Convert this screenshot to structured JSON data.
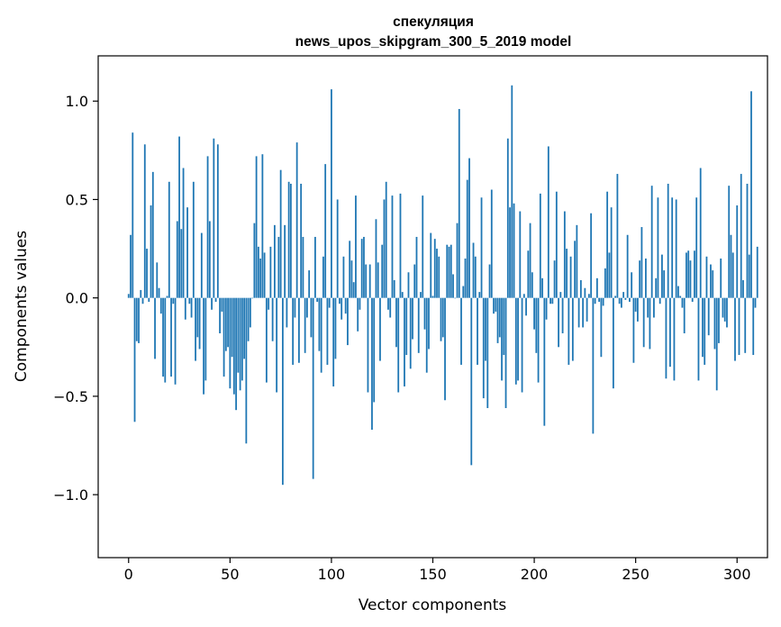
{
  "chart_data": {
    "type": "bar",
    "title": "спекуляция",
    "subtitle": "news_upos_skipgram_300_5_2019 model",
    "xlabel": "Vector components",
    "ylabel": "Components values",
    "xlim": [
      -15,
      315
    ],
    "ylim": [
      -1.32,
      1.23
    ],
    "xticks": [
      0,
      50,
      100,
      150,
      200,
      250,
      300
    ],
    "yticks": [
      -1.0,
      -0.5,
      0.0,
      0.5,
      1.0
    ],
    "ytick_labels": [
      "−1.0",
      "−0.5",
      "0.0",
      "0.5",
      "1.0"
    ],
    "bar_color": "#1f77b4",
    "grid": false,
    "values": [
      0.02,
      0.32,
      0.84,
      -0.63,
      -0.22,
      -0.23,
      0.04,
      -0.03,
      0.78,
      0.25,
      -0.02,
      0.47,
      0.64,
      -0.31,
      0.18,
      0.05,
      -0.08,
      -0.4,
      -0.43,
      0.01,
      0.59,
      -0.4,
      -0.03,
      -0.44,
      0.39,
      0.82,
      0.35,
      0.66,
      -0.11,
      0.46,
      -0.03,
      -0.1,
      0.59,
      -0.32,
      -0.2,
      -0.26,
      0.33,
      -0.49,
      -0.42,
      0.72,
      0.39,
      -0.06,
      0.81,
      -0.02,
      0.78,
      -0.18,
      -0.07,
      -0.4,
      -0.27,
      -0.25,
      -0.46,
      -0.3,
      -0.49,
      -0.57,
      -0.38,
      -0.47,
      -0.42,
      -0.31,
      -0.74,
      -0.22,
      -0.15,
      0.0,
      0.38,
      0.72,
      0.26,
      0.2,
      0.73,
      0.23,
      -0.43,
      -0.06,
      0.26,
      -0.22,
      0.37,
      -0.48,
      0.31,
      0.65,
      -0.95,
      0.37,
      -0.15,
      0.59,
      0.58,
      -0.34,
      -0.1,
      0.79,
      -0.33,
      0.58,
      0.31,
      -0.28,
      -0.1,
      0.14,
      -0.2,
      -0.92,
      0.31,
      -0.02,
      -0.27,
      -0.38,
      0.21,
      0.68,
      -0.34,
      -0.05,
      1.06,
      -0.45,
      -0.31,
      0.5,
      -0.03,
      -0.11,
      0.21,
      -0.08,
      -0.24,
      0.29,
      0.19,
      0.08,
      0.52,
      -0.17,
      -0.06,
      0.3,
      0.31,
      0.17,
      -0.48,
      0.17,
      -0.67,
      -0.53,
      0.4,
      0.18,
      -0.32,
      0.27,
      0.5,
      0.59,
      -0.06,
      -0.1,
      0.52,
      0.09,
      -0.25,
      -0.48,
      0.53,
      0.03,
      -0.45,
      -0.29,
      0.13,
      -0.36,
      -0.21,
      0.17,
      0.31,
      -0.28,
      0.03,
      0.52,
      -0.16,
      -0.38,
      -0.26,
      0.33,
      0.01,
      0.3,
      0.25,
      0.21,
      -0.22,
      -0.2,
      -0.52,
      0.27,
      0.26,
      0.27,
      0.12,
      0.0,
      0.38,
      0.96,
      -0.34,
      0.06,
      0.2,
      0.6,
      0.71,
      -0.85,
      0.28,
      0.21,
      -0.34,
      0.03,
      0.51,
      -0.51,
      -0.32,
      -0.56,
      0.17,
      0.55,
      -0.08,
      -0.07,
      -0.23,
      -0.2,
      -0.42,
      -0.29,
      -0.56,
      0.81,
      0.46,
      1.08,
      0.48,
      -0.44,
      -0.42,
      0.44,
      -0.48,
      0.02,
      -0.09,
      0.24,
      0.38,
      0.13,
      -0.16,
      -0.28,
      -0.43,
      0.53,
      0.1,
      -0.65,
      -0.11,
      0.77,
      -0.03,
      -0.03,
      0.19,
      0.54,
      -0.25,
      0.03,
      -0.18,
      0.44,
      0.25,
      -0.34,
      0.21,
      -0.32,
      0.29,
      0.37,
      -0.15,
      0.09,
      -0.15,
      0.05,
      -0.12,
      0.02,
      0.43,
      -0.69,
      -0.03,
      0.1,
      -0.02,
      -0.3,
      -0.04,
      0.15,
      0.54,
      0.23,
      0.46,
      -0.46,
      0.01,
      0.63,
      -0.03,
      -0.05,
      0.03,
      -0.01,
      0.32,
      -0.02,
      0.13,
      -0.33,
      -0.07,
      -0.12,
      0.19,
      0.36,
      -0.25,
      0.2,
      -0.1,
      -0.26,
      0.57,
      -0.1,
      0.1,
      0.51,
      -0.03,
      0.22,
      0.14,
      -0.41,
      0.58,
      -0.35,
      0.51,
      -0.42,
      0.5,
      0.06,
      0.01,
      -0.05,
      -0.18,
      0.23,
      0.24,
      0.19,
      -0.02,
      0.24,
      0.51,
      -0.42,
      0.66,
      -0.3,
      -0.34,
      0.21,
      -0.19,
      0.17,
      0.14,
      -0.26,
      -0.47,
      -0.23,
      0.2,
      -0.1,
      -0.12,
      -0.15,
      0.57,
      0.32,
      0.23,
      -0.32,
      0.47,
      -0.29,
      0.63,
      0.09,
      -0.28,
      0.58,
      0.22,
      1.05,
      -0.29,
      -0.05,
      0.26
    ]
  }
}
